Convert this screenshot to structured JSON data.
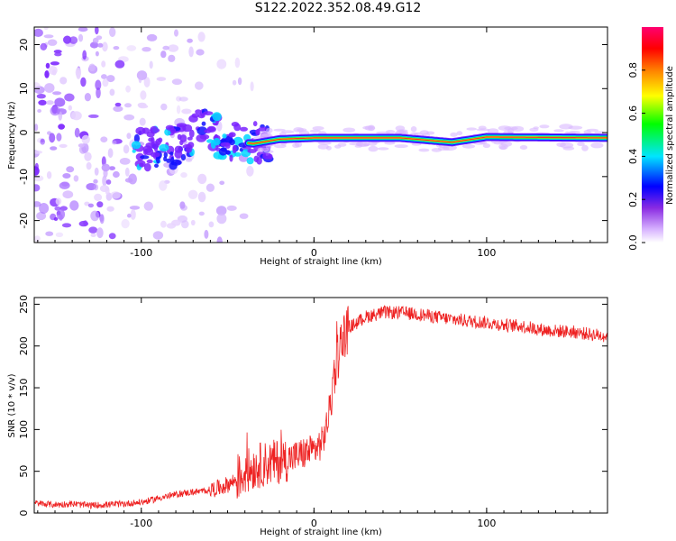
{
  "title": "S122.2022.352.08.49.G12",
  "chart_data": [
    {
      "type": "heatmap",
      "xlabel": "Height of straight line (km)",
      "ylabel": "Frequency (Hz)",
      "xlim": [
        -162,
        170
      ],
      "ylim": [
        -25,
        24
      ],
      "x_ticks": [
        -100,
        0,
        100
      ],
      "y_ticks": [
        -20,
        -10,
        0,
        10,
        20
      ],
      "colorbar": {
        "label": "Normalized spectral amplitude",
        "range": [
          0,
          1
        ],
        "ticks": [
          "0.0",
          "0.2",
          "0.4",
          "0.6",
          "0.8"
        ],
        "colors": [
          "#f0e4ff",
          "#9b40ff",
          "#0000ff",
          "#00e5ff",
          "#00ff00",
          "#ffff00",
          "#ff8000",
          "#ff0000",
          "#ff0070"
        ]
      },
      "ridge": [
        {
          "x": -100,
          "y": -4
        },
        {
          "x": -80,
          "y": -3
        },
        {
          "x": -65,
          "y": 1
        },
        {
          "x": -50,
          "y": -2
        },
        {
          "x": -35,
          "y": -2.5
        },
        {
          "x": -20,
          "y": -1.5
        },
        {
          "x": 0,
          "y": -1.2
        },
        {
          "x": 50,
          "y": -1.2
        },
        {
          "x": 80,
          "y": -2.2
        },
        {
          "x": 100,
          "y": -1
        },
        {
          "x": 170,
          "y": -1.2
        }
      ]
    },
    {
      "type": "line",
      "xlabel": "Height of straight line (km)",
      "ylabel": "SNR (10 * v/v)",
      "xlim": [
        -162,
        170
      ],
      "ylim": [
        0,
        258
      ],
      "x_ticks": [
        -100,
        0,
        100
      ],
      "y_ticks": [
        0,
        50,
        100,
        150,
        200,
        250
      ],
      "color": "#ee2222",
      "series": [
        {
          "x": [
            -162,
            -150,
            -140,
            -130,
            -120,
            -110,
            -100,
            -95,
            -90,
            -85,
            -80,
            -75,
            -70,
            -65,
            -60,
            -55,
            -50,
            -45,
            -40,
            -35,
            -30,
            -25,
            -20,
            -15,
            -10,
            -5,
            0,
            5,
            8,
            10,
            12,
            15,
            18,
            20,
            25,
            30,
            40,
            50,
            60,
            70,
            80,
            90,
            100,
            110,
            120,
            130,
            140,
            150,
            160,
            170
          ],
          "values": [
            12,
            10,
            11,
            9,
            10,
            11,
            13,
            15,
            18,
            20,
            22,
            24,
            25,
            26,
            28,
            30,
            34,
            40,
            48,
            55,
            58,
            60,
            62,
            65,
            68,
            72,
            75,
            85,
            110,
            140,
            170,
            200,
            215,
            222,
            228,
            235,
            240,
            240,
            238,
            235,
            232,
            230,
            228,
            225,
            224,
            220,
            218,
            217,
            214,
            212
          ]
        }
      ]
    }
  ]
}
